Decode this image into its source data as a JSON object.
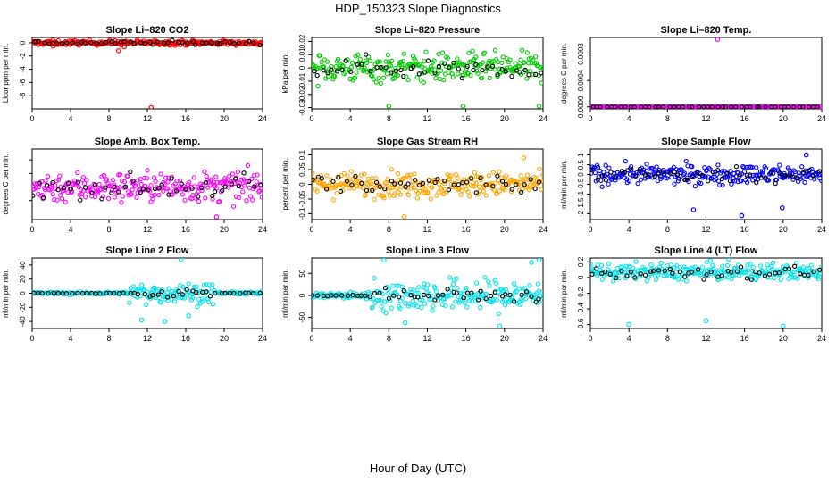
{
  "figure": {
    "title": "HDP_150323  Slope Diagnostics",
    "xlabel": "Hour of Day (UTC)"
  },
  "chart_data": [
    {
      "type": "scatter",
      "title": "Slope Li–820 CO2",
      "ylabel": "Licor ppm per min.",
      "xlim": [
        0,
        24
      ],
      "xticks": [
        0,
        4,
        8,
        12,
        16,
        20,
        24
      ],
      "ylim": [
        -10,
        0.8
      ],
      "yticks": [
        0,
        -2,
        -4,
        -6,
        -8
      ],
      "color": "#ff0000",
      "noise": 0.3,
      "base": 0,
      "outliers": [
        [
          12.4,
          -9.8
        ],
        [
          9.0,
          -1.2
        ],
        [
          9.6,
          -0.6
        ],
        [
          2.2,
          -0.5
        ]
      ]
    },
    {
      "type": "scatter",
      "title": "Slope Li–820 Pressure",
      "ylabel": "kPa per min.",
      "xlim": [
        0,
        24
      ],
      "xticks": [
        0,
        4,
        8,
        12,
        16,
        20,
        24
      ],
      "ylim": [
        -0.031,
        0.023
      ],
      "yticks": [
        0.02,
        0.01,
        0.0,
        -0.01,
        -0.02,
        -0.03
      ],
      "color": "#00cc00",
      "noise": 0.009,
      "base": 0,
      "outliers": [
        [
          8.0,
          -0.029
        ],
        [
          15.7,
          -0.029
        ],
        [
          23.6,
          -0.029
        ]
      ]
    },
    {
      "type": "scatter",
      "title": "Slope Li–820 Temp.",
      "ylabel": "degrees C per min.",
      "xlim": [
        0,
        24
      ],
      "xticks": [
        0,
        4,
        8,
        12,
        16,
        20,
        24
      ],
      "ylim": [
        -3e-05,
        0.00105
      ],
      "yticks": [
        0.0,
        0.0004,
        0.0008
      ],
      "yticklabels": [
        "0.0000",
        "0.0004",
        "0.0008"
      ],
      "color": "#ff00ff",
      "noise": 0,
      "base": 0,
      "outliers": [
        [
          13.2,
          0.00102
        ]
      ]
    },
    {
      "type": "scatter",
      "title": "Slope Amb. Box Temp.",
      "ylabel": "degrees C per min.",
      "xlim": [
        0,
        24
      ],
      "xticks": [
        0,
        4,
        8,
        12,
        16,
        20,
        24
      ],
      "ylim": [
        -0.12,
        0.14
      ],
      "yticks": [
        0.1,
        0.05,
        0.0,
        -0.05
      ],
      "yticklabels": [
        "",
        "",
        "",
        ""
      ],
      "color": "#ff00ff",
      "noise": 0.045,
      "base": 0,
      "outliers": [
        [
          19.2,
          -0.11
        ]
      ]
    },
    {
      "type": "scatter",
      "title": "Slope Gas Stream RH",
      "ylabel": "percent per min.",
      "xlim": [
        0,
        24
      ],
      "xticks": [
        0,
        4,
        8,
        12,
        16,
        20,
        24
      ],
      "ylim": [
        -0.12,
        0.12
      ],
      "yticks": [
        0.1,
        0.05,
        0.0,
        -0.05,
        -0.1
      ],
      "color": "#ffa500",
      "noise": 0.035,
      "base": 0,
      "outliers": [
        [
          9.6,
          -0.11
        ],
        [
          22.0,
          0.09
        ]
      ]
    },
    {
      "type": "scatter",
      "title": "Slope Sample Flow",
      "ylabel": "ml/min per min.",
      "xlim": [
        0,
        24
      ],
      "xticks": [
        0,
        4,
        8,
        12,
        16,
        20,
        24
      ],
      "ylim": [
        -2.3,
        1.3
      ],
      "yticks": [
        1.0,
        0.5,
        0.0,
        -0.5,
        -1.0,
        -1.5,
        -2.0
      ],
      "color": "#0000ff",
      "noise": 0.4,
      "base": 0,
      "outliers": [
        [
          10.7,
          -1.8
        ],
        [
          15.7,
          -2.1
        ],
        [
          19.9,
          -1.7
        ],
        [
          22.4,
          1.0
        ]
      ]
    },
    {
      "type": "scatter",
      "title": "Slope Line 2 Flow",
      "ylabel": "ml/min per min.",
      "xlim": [
        0,
        24
      ],
      "xticks": [
        0,
        4,
        8,
        12,
        16,
        20,
        24
      ],
      "ylim": [
        -50,
        50
      ],
      "yticks": [
        40,
        20,
        0,
        -20,
        -40
      ],
      "color": "#00e5ee",
      "noise": 12,
      "base": 0,
      "noiseRange": [
        10,
        19
      ],
      "lowNoise": 1.5,
      "outliers": [
        [
          15.5,
          48
        ],
        [
          13.8,
          -40
        ],
        [
          11.4,
          -38
        ],
        [
          16.3,
          -32
        ]
      ]
    },
    {
      "type": "scatter",
      "title": "Slope Line 3 Flow",
      "ylabel": "ml/min per min.",
      "xlim": [
        0,
        24
      ],
      "xticks": [
        0,
        4,
        8,
        12,
        16,
        20,
        24
      ],
      "ylim": [
        -75,
        85
      ],
      "yticks": [
        50,
        0,
        -50
      ],
      "color": "#00e5ee",
      "noise": 30,
      "base": 0,
      "noiseRange": [
        6,
        24
      ],
      "lowNoise": 6,
      "outliers": [
        [
          7.5,
          80
        ],
        [
          9.7,
          -62
        ],
        [
          19.5,
          -70
        ],
        [
          22.8,
          75
        ],
        [
          23.6,
          80
        ]
      ]
    },
    {
      "type": "scatter",
      "title": "Slope Line 4 (LT) Flow",
      "ylabel": "ml/min per min.",
      "xlim": [
        0,
        24
      ],
      "xticks": [
        0,
        4,
        8,
        12,
        16,
        20,
        24
      ],
      "ylim": [
        -0.65,
        0.25
      ],
      "yticks": [
        0.2,
        0.0,
        -0.2,
        -0.4,
        -0.6
      ],
      "color": "#00e5ee",
      "noise": 0.09,
      "base": 0.07,
      "outliers": [
        [
          4.0,
          -0.6
        ],
        [
          12.0,
          -0.55
        ],
        [
          20.0,
          -0.62
        ]
      ]
    }
  ]
}
